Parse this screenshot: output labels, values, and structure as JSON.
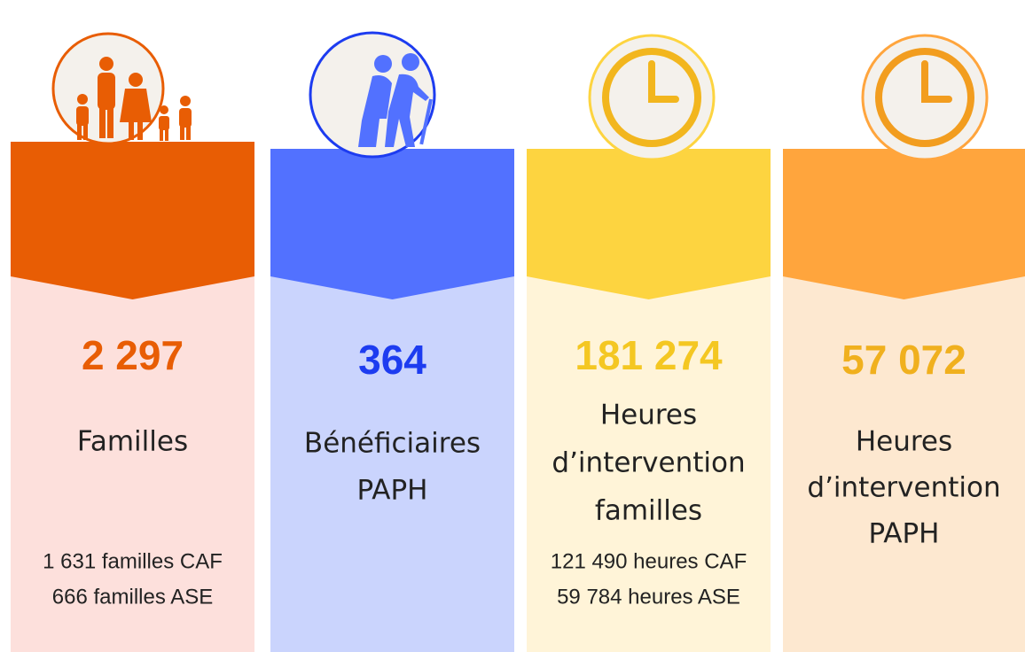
{
  "cards": [
    {
      "value": "2 297",
      "label_lines": [
        "Familles"
      ],
      "details": [
        "1 631  familles CAF",
        "666 familles ASE"
      ],
      "color": "#e85d04",
      "light": "#fde0dc",
      "number_color": "#e85d04"
    },
    {
      "value": "364",
      "label_lines": [
        "Bénéficiaires",
        "PAPH"
      ],
      "details": [],
      "color": "#5271ff",
      "light": "#cad4fd",
      "number_color": "#1d3cf0"
    },
    {
      "value": "181 274",
      "label_lines": [
        "Heures",
        "d’intervention",
        "familles"
      ],
      "details": [
        "121 490 heures CAF",
        "59 784 heures ASE"
      ],
      "color": "#fdd440",
      "light": "#fff4d8",
      "number_color": "#f4c722"
    },
    {
      "value": "57 072",
      "label_lines": [
        "Heures",
        "d’intervention",
        "PAPH"
      ],
      "details": [],
      "color": "#ffa53d",
      "light": "#fde8d0",
      "number_color": "#f0b01e"
    }
  ]
}
